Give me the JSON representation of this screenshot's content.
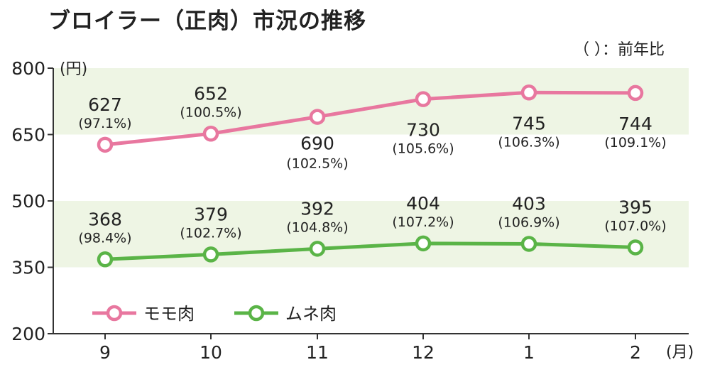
{
  "title": "ブロイラー（正肉）市況の推移",
  "note": "（ ）：前年比",
  "chart_data": {
    "type": "line",
    "title": "ブロイラー（正肉）市況の推移",
    "y_unit": "(円)",
    "x_unit": "(月)",
    "categories": [
      "9",
      "10",
      "11",
      "12",
      "1",
      "2"
    ],
    "ylim": [
      200,
      800
    ],
    "yticks": [
      "200",
      "350",
      "500",
      "650",
      "800"
    ],
    "bands": [
      [
        650,
        800
      ],
      [
        350,
        500
      ]
    ],
    "legend_position": "bottom-left",
    "series": [
      {
        "name": "モモ肉",
        "color": "#e8779f",
        "values": [
          627,
          652,
          690,
          730,
          745,
          744
        ],
        "value_labels": [
          "627",
          "652",
          "690",
          "730",
          "745",
          "744"
        ],
        "yoy_labels": [
          "(97.1%)",
          "(100.5%)",
          "(102.5%)",
          "(105.6%)",
          "(106.3%)",
          "(109.1%)"
        ]
      },
      {
        "name": "ムネ肉",
        "color": "#5ab447",
        "values": [
          368,
          379,
          392,
          404,
          403,
          395
        ],
        "value_labels": [
          "368",
          "379",
          "392",
          "404",
          "403",
          "395"
        ],
        "yoy_labels": [
          "(98.4%)",
          "(102.7%)",
          "(104.8%)",
          "(107.2%)",
          "(106.9%)",
          "(107.0%)"
        ]
      }
    ],
    "band_color": "#eef5e4",
    "grid": false
  }
}
